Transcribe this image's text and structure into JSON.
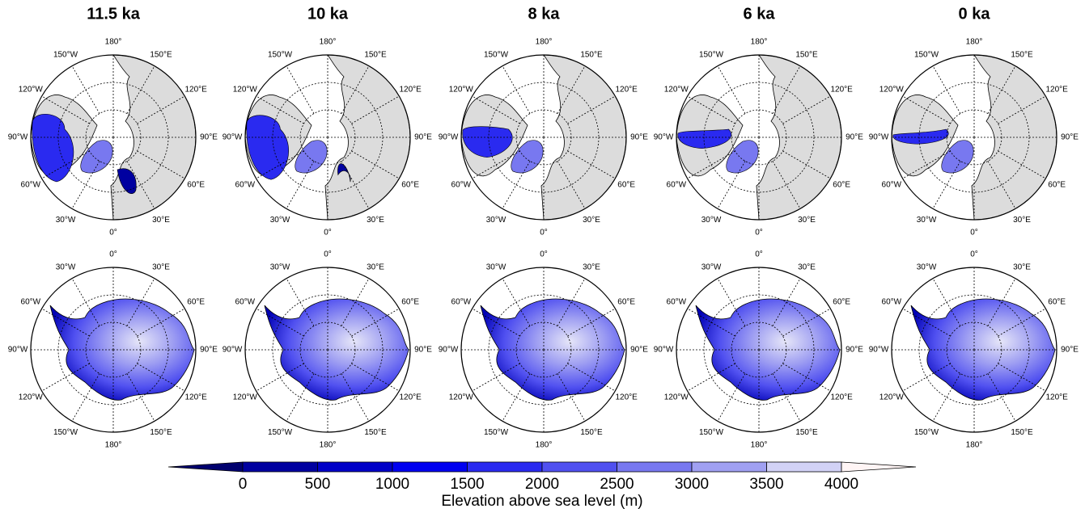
{
  "panels": [
    {
      "title": "11.5 ka"
    },
    {
      "title": "10 ka"
    },
    {
      "title": "8 ka"
    },
    {
      "title": "6 ka"
    },
    {
      "title": "0 ka"
    }
  ],
  "north_lon_labels": [
    "180°",
    "150°E",
    "120°E",
    "90°E",
    "60°E",
    "30°E",
    "0°",
    "30°W",
    "60°W",
    "90°W",
    "120°W",
    "150°W"
  ],
  "south_lon_labels": [
    "0°",
    "30°E",
    "60°E",
    "90°E",
    "120°E",
    "150°E",
    "180°",
    "150°W",
    "120°W",
    "90°W",
    "60°W",
    "30°W"
  ],
  "colorbar": {
    "label": "Elevation above sea level (m)",
    "levels": [
      0,
      500,
      1000,
      1500,
      2000,
      2500,
      3000,
      3500,
      4000
    ],
    "colors": [
      "#00006e",
      "#0000a0",
      "#0000c8",
      "#0000f0",
      "#2a2af0",
      "#5050f0",
      "#7878f0",
      "#a0a0f2",
      "#d2d2f6",
      "#fff5f5"
    ]
  }
}
